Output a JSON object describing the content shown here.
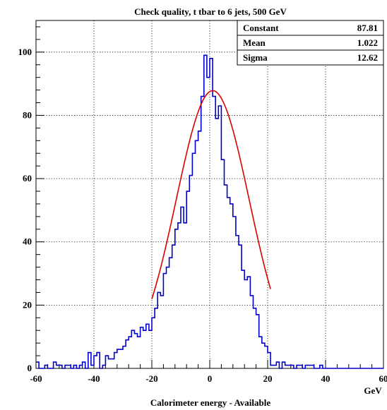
{
  "chart_data": {
    "type": "histogram",
    "title": "Check quality, t tbar to 6 jets, 500 GeV",
    "xlabel": "Calorimeter energy - Available",
    "xunit": "GeV",
    "xlim": [
      -60,
      60
    ],
    "ylim": [
      0,
      110
    ],
    "grid": true,
    "x_ticks": [
      "-60",
      "-40",
      "-20",
      "0",
      "20",
      "40",
      "60"
    ],
    "y_ticks": [
      "0",
      "20",
      "40",
      "60",
      "80",
      "100"
    ],
    "histogram_color": "#0000cc",
    "fit_color": "#dd0000",
    "bin_edges_start": -60,
    "bin_width": 1,
    "counts": [
      2,
      0,
      0,
      1,
      0,
      0,
      2,
      1,
      1,
      0,
      1,
      1,
      0,
      1,
      0,
      1,
      2,
      0,
      5,
      1,
      4,
      5,
      0,
      1,
      4,
      3,
      3,
      5,
      6,
      6,
      7,
      9,
      10,
      12,
      11,
      10,
      13,
      12,
      14,
      12,
      16,
      19,
      24,
      23,
      30,
      32,
      35,
      39,
      44,
      46,
      51,
      46,
      56,
      61,
      68,
      72,
      75,
      86,
      99,
      92,
      98,
      86,
      79,
      83,
      66,
      58,
      54,
      52,
      48,
      42,
      39,
      31,
      28,
      29,
      23,
      19,
      17,
      10,
      8,
      7,
      5,
      1,
      1,
      2,
      0,
      2,
      1,
      1,
      1,
      0,
      1,
      1,
      0,
      1,
      1,
      1,
      0,
      0,
      1,
      0,
      0,
      0,
      0,
      0,
      0,
      0,
      0,
      0,
      0,
      0,
      0,
      0,
      0,
      0,
      0,
      0,
      0,
      0,
      0,
      0
    ],
    "fit": {
      "type": "gaussian",
      "range": [
        -20,
        21
      ],
      "constant": 87.81,
      "mean": 1.022,
      "sigma": 12.62
    },
    "stats_box": [
      {
        "label": "Constant",
        "value": "87.81"
      },
      {
        "label": "Mean",
        "value": "1.022"
      },
      {
        "label": "Sigma",
        "value": "12.62"
      }
    ]
  }
}
